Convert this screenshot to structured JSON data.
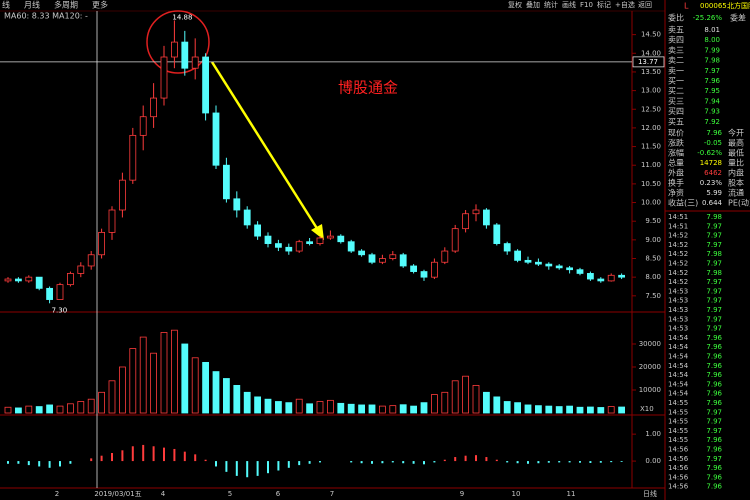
{
  "toolbar": {
    "left": [
      "线",
      "月线",
      "多周期",
      "更多"
    ],
    "right": [
      "复权",
      "叠加",
      "统计",
      "画线",
      "F10",
      "标记",
      "+自选",
      "返回"
    ]
  },
  "indicator_label": "MA60: 8.33  MA120: -",
  "watermark": "博股通金",
  "price": {
    "ylim": [
      7.12,
      15.16
    ],
    "yticks": [
      {
        "value": 7.5,
        "label": "7.50"
      },
      {
        "value": 8,
        "label": "8.00"
      },
      {
        "value": 8.5,
        "label": "8.50"
      },
      {
        "value": 9,
        "label": "9.00"
      },
      {
        "value": 9.5,
        "label": "9.50"
      },
      {
        "value": 10,
        "label": "10.00"
      },
      {
        "value": 10.5,
        "label": "10.50"
      },
      {
        "value": 11,
        "label": "11.00"
      },
      {
        "value": 11.5,
        "label": "11.50"
      },
      {
        "value": 12,
        "label": "12.00"
      },
      {
        "value": 12.5,
        "label": "12.50"
      },
      {
        "value": 13,
        "label": "13.00"
      },
      {
        "value": 13.5,
        "label": "13.50"
      },
      {
        "value": 14,
        "label": "14.00"
      },
      {
        "value": 14.5,
        "label": "14.50"
      }
    ],
    "crosshair": {
      "value": 13.77,
      "label": "13.77"
    },
    "high_label": "14.88",
    "low_label": "7.30",
    "candles": [
      [
        7.9,
        8.0,
        7.85,
        7.95
      ],
      [
        7.95,
        8.0,
        7.85,
        7.9
      ],
      [
        7.9,
        8.05,
        7.85,
        8.0
      ],
      [
        8.0,
        8.0,
        7.65,
        7.7
      ],
      [
        7.7,
        7.75,
        7.3,
        7.4
      ],
      [
        7.4,
        7.85,
        7.4,
        7.8
      ],
      [
        7.8,
        8.15,
        7.75,
        8.1
      ],
      [
        8.1,
        8.4,
        8.0,
        8.3
      ],
      [
        8.3,
        8.7,
        8.2,
        8.6
      ],
      [
        8.6,
        9.3,
        8.5,
        9.2
      ],
      [
        9.2,
        9.9,
        9.0,
        9.8
      ],
      [
        9.8,
        10.8,
        9.6,
        10.6
      ],
      [
        10.6,
        12.0,
        10.5,
        11.8
      ],
      [
        11.8,
        12.6,
        11.4,
        12.3
      ],
      [
        12.3,
        13.2,
        12.0,
        12.8
      ],
      [
        12.8,
        14.2,
        12.6,
        13.9
      ],
      [
        13.9,
        14.88,
        13.6,
        14.3
      ],
      [
        14.3,
        14.6,
        13.4,
        13.6
      ],
      [
        13.6,
        14.4,
        13.3,
        13.9
      ],
      [
        13.9,
        14.0,
        12.2,
        12.4
      ],
      [
        12.4,
        12.6,
        10.9,
        11.0
      ],
      [
        11.0,
        11.2,
        10.0,
        10.1
      ],
      [
        10.1,
        10.3,
        9.6,
        9.8
      ],
      [
        9.8,
        9.9,
        9.3,
        9.4
      ],
      [
        9.4,
        9.5,
        9.0,
        9.1
      ],
      [
        9.1,
        9.2,
        8.8,
        8.9
      ],
      [
        8.9,
        9.0,
        8.7,
        8.8
      ],
      [
        8.8,
        8.9,
        8.6,
        8.7
      ],
      [
        8.7,
        9.0,
        8.65,
        8.95
      ],
      [
        8.95,
        9.05,
        8.85,
        8.9
      ],
      [
        8.9,
        9.1,
        8.85,
        9.05
      ],
      [
        9.05,
        9.25,
        9.0,
        9.1
      ],
      [
        9.1,
        9.15,
        8.9,
        8.95
      ],
      [
        8.95,
        9.0,
        8.65,
        8.7
      ],
      [
        8.7,
        8.75,
        8.55,
        8.6
      ],
      [
        8.6,
        8.65,
        8.35,
        8.4
      ],
      [
        8.4,
        8.6,
        8.35,
        8.5
      ],
      [
        8.5,
        8.7,
        8.45,
        8.6
      ],
      [
        8.6,
        8.65,
        8.25,
        8.3
      ],
      [
        8.3,
        8.35,
        8.1,
        8.15
      ],
      [
        8.15,
        8.2,
        7.9,
        8.0
      ],
      [
        8.0,
        8.5,
        7.95,
        8.4
      ],
      [
        8.4,
        8.8,
        8.35,
        8.7
      ],
      [
        8.7,
        9.4,
        8.65,
        9.3
      ],
      [
        9.3,
        9.8,
        9.2,
        9.7
      ],
      [
        9.7,
        9.95,
        9.5,
        9.8
      ],
      [
        9.8,
        9.85,
        9.3,
        9.4
      ],
      [
        9.4,
        9.45,
        8.85,
        8.9
      ],
      [
        8.9,
        8.95,
        8.6,
        8.7
      ],
      [
        8.7,
        8.75,
        8.4,
        8.45
      ],
      [
        8.45,
        8.55,
        8.35,
        8.4
      ],
      [
        8.4,
        8.5,
        8.3,
        8.35
      ],
      [
        8.35,
        8.4,
        8.2,
        8.3
      ],
      [
        8.3,
        8.35,
        8.2,
        8.25
      ],
      [
        8.25,
        8.3,
        8.1,
        8.2
      ],
      [
        8.2,
        8.25,
        8.05,
        8.1
      ],
      [
        8.1,
        8.15,
        7.9,
        7.95
      ],
      [
        7.95,
        8.0,
        7.85,
        7.9
      ],
      [
        7.9,
        8.1,
        7.88,
        8.05
      ],
      [
        8.05,
        8.1,
        7.95,
        8.0
      ]
    ]
  },
  "volume": {
    "ylim": [
      0,
      42600
    ],
    "yticks": [
      10000,
      20000,
      30000
    ],
    "unit": "X10",
    "values": [
      2500,
      2200,
      3000,
      2800,
      3500,
      3000,
      4000,
      5000,
      6000,
      9000,
      14000,
      20000,
      28000,
      33000,
      26000,
      35000,
      36000,
      30000,
      24000,
      22000,
      18000,
      15000,
      12000,
      9000,
      7000,
      6000,
      5000,
      4500,
      6000,
      4000,
      5000,
      5500,
      4200,
      3800,
      3500,
      3500,
      3000,
      3200,
      3600,
      3000,
      4500,
      8000,
      9000,
      14000,
      16000,
      12000,
      9000,
      7000,
      5000,
      4500,
      3500,
      3200,
      3000,
      2800,
      3000,
      2500,
      2600,
      2400,
      2800,
      2600
    ]
  },
  "macd": {
    "ylim": [
      -1,
      1.6
    ],
    "yticks": [
      {
        "value": 1,
        "label": "1.00"
      },
      {
        "value": 0,
        "label": "0.00"
      }
    ],
    "values": [
      -0.1,
      -0.1,
      -0.15,
      -0.2,
      -0.25,
      -0.2,
      -0.1,
      0,
      0.1,
      0.2,
      0.3,
      0.4,
      0.55,
      0.6,
      0.55,
      0.5,
      0.45,
      0.35,
      0.25,
      0.05,
      -0.2,
      -0.4,
      -0.55,
      -0.6,
      -0.55,
      -0.45,
      -0.35,
      -0.25,
      -0.15,
      -0.1,
      -0.05,
      0,
      0,
      -0.05,
      -0.08,
      -0.1,
      -0.08,
      -0.05,
      -0.08,
      -0.1,
      -0.12,
      -0.05,
      0.05,
      0.15,
      0.2,
      0.22,
      0.15,
      0.05,
      -0.05,
      -0.08,
      -0.1,
      -0.08,
      -0.06,
      -0.05,
      -0.05,
      -0.06,
      -0.07,
      -0.06,
      -0.04,
      -0.03
    ]
  },
  "xlabels": [
    "2",
    "2019/03/01五",
    "4",
    "5",
    "6",
    "7",
    "9",
    "10",
    "11",
    "日线"
  ],
  "quote": {
    "prefix": "L",
    "code": "000065",
    "name": "北方国际",
    "ratio_label": "委比",
    "ratio": "-25.26%",
    "diff_label": "委差",
    "book": [
      [
        "卖五",
        "8.01"
      ],
      [
        "卖四",
        "8.00"
      ],
      [
        "卖三",
        "7.99"
      ],
      [
        "卖二",
        "7.98"
      ],
      [
        "卖一",
        "7.97"
      ],
      [
        "买一",
        "7.96"
      ],
      [
        "买二",
        "7.95"
      ],
      [
        "买三",
        "7.94"
      ],
      [
        "买四",
        "7.93"
      ],
      [
        "买五",
        "7.92"
      ]
    ],
    "stats": [
      [
        "现价",
        "7.96",
        "今开"
      ],
      [
        "涨跌",
        "-0.05",
        "最高"
      ],
      [
        "涨幅",
        "-0.62%",
        "最低"
      ],
      [
        "总量",
        "14728",
        "量比"
      ],
      [
        "外盘",
        "6462",
        "内盘"
      ],
      [
        "换手",
        "0.23%",
        "股本"
      ],
      [
        "净资",
        "5.99",
        "流通"
      ],
      [
        "收益(三)",
        "0.644",
        "PE(动)"
      ]
    ],
    "ticks": [
      [
        "14:51",
        "7.98"
      ],
      [
        "14:51",
        "7.97"
      ],
      [
        "14:52",
        "7.97"
      ],
      [
        "14:52",
        "7.97"
      ],
      [
        "14:52",
        "7.98"
      ],
      [
        "14:52",
        "7.97"
      ],
      [
        "14:52",
        "7.98"
      ],
      [
        "14:52",
        "7.97"
      ],
      [
        "14:53",
        "7.97"
      ],
      [
        "14:53",
        "7.97"
      ],
      [
        "14:53",
        "7.97"
      ],
      [
        "14:53",
        "7.97"
      ],
      [
        "14:53",
        "7.97"
      ],
      [
        "14:54",
        "7.96"
      ],
      [
        "14:54",
        "7.96"
      ],
      [
        "14:54",
        "7.96"
      ],
      [
        "14:54",
        "7.96"
      ],
      [
        "14:54",
        "7.96"
      ],
      [
        "14:54",
        "7.96"
      ],
      [
        "14:54",
        "7.96"
      ],
      [
        "14:55",
        "7.96"
      ],
      [
        "14:55",
        "7.97"
      ],
      [
        "14:55",
        "7.97"
      ],
      [
        "14:55",
        "7.97"
      ],
      [
        "14:55",
        "7.96"
      ],
      [
        "14:56",
        "7.96"
      ],
      [
        "14:56",
        "7.97"
      ],
      [
        "14:56",
        "7.96"
      ],
      [
        "14:56",
        "7.96"
      ],
      [
        "14:56",
        "7.96"
      ]
    ]
  }
}
